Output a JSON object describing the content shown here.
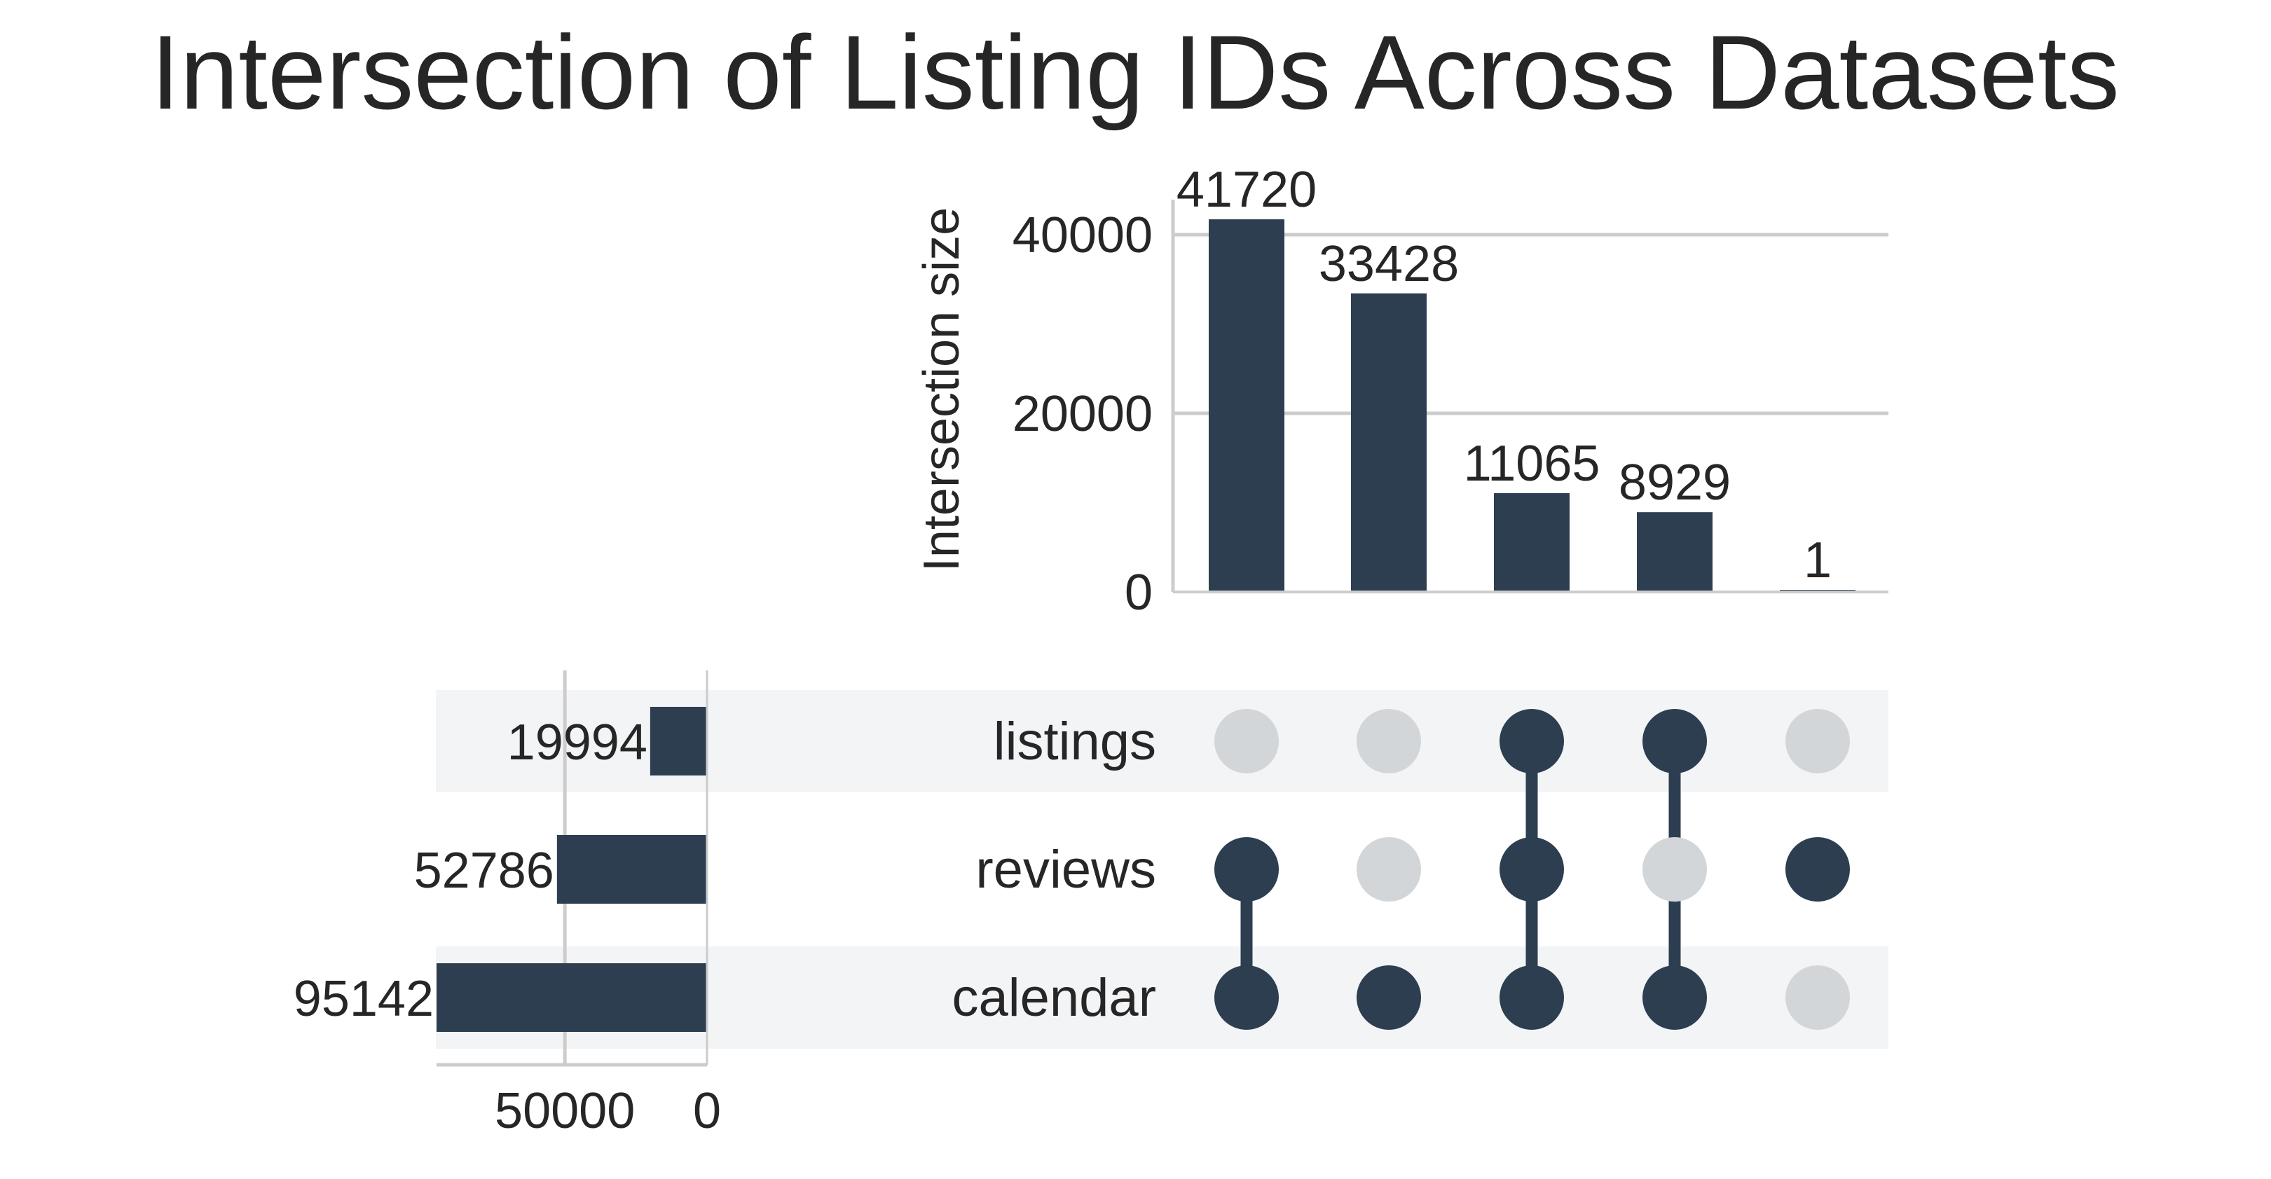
{
  "chart_data": {
    "type": "bar",
    "title": "Intersection of Listing IDs Across Datasets",
    "ylabel": "Intersection size",
    "ylim": [
      0,
      43000
    ],
    "yticks": [
      0,
      20000,
      40000
    ],
    "grid": true,
    "intersections": [
      {
        "value": 41720,
        "label": "41720",
        "members": [
          "reviews",
          "calendar"
        ]
      },
      {
        "value": 33428,
        "label": "33428",
        "members": [
          "calendar"
        ]
      },
      {
        "value": 11065,
        "label": "11065",
        "members": [
          "listings",
          "reviews",
          "calendar"
        ]
      },
      {
        "value": 8929,
        "label": "8929",
        "members": [
          "listings",
          "calendar"
        ]
      },
      {
        "value": 1,
        "label": "1",
        "members": [
          "reviews"
        ]
      }
    ],
    "sets": [
      {
        "name": "listings",
        "size": 19994,
        "label": "19994"
      },
      {
        "name": "reviews",
        "size": 52786,
        "label": "52786"
      },
      {
        "name": "calendar",
        "size": 95142,
        "label": "95142"
      }
    ],
    "set_size_xlim": [
      0,
      95142
    ],
    "set_size_ticks": [
      50000,
      0
    ],
    "colors": {
      "bar": "#2c3e50",
      "inactive_dot": "#d3d6d9",
      "stripe": "#f3f4f6",
      "grid": "#cccccc",
      "text": "#262626"
    }
  }
}
